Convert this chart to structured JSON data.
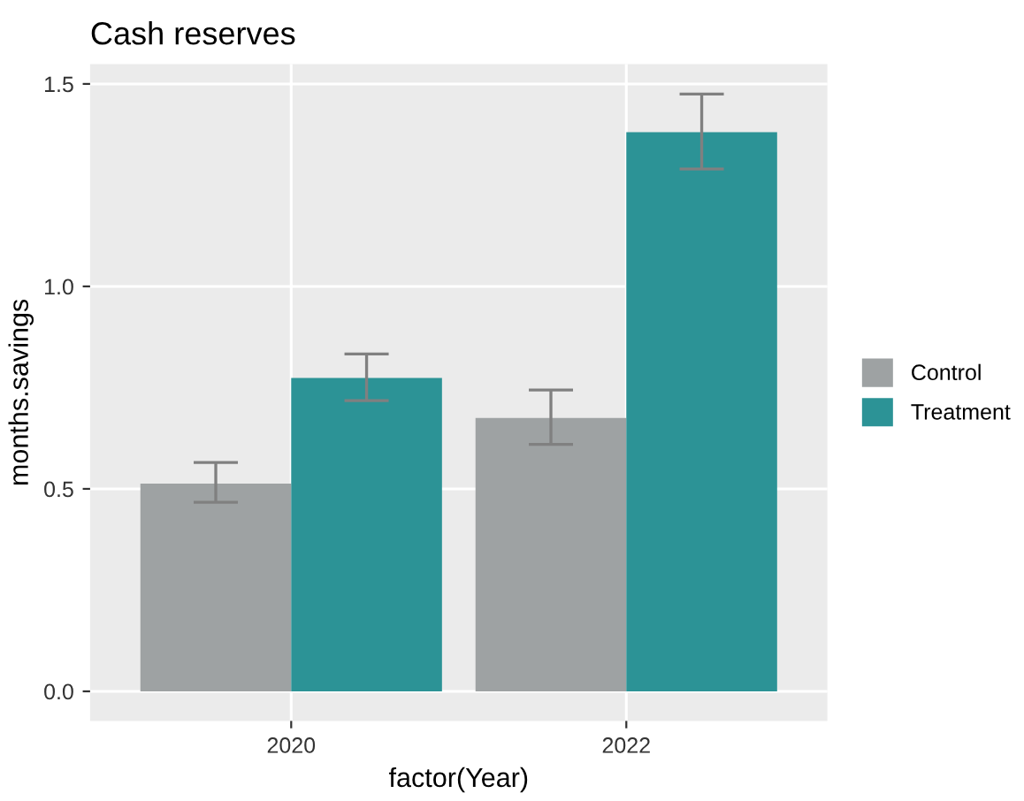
{
  "chart_data": {
    "type": "bar",
    "title": "Cash reserves",
    "xlabel": "factor(Year)",
    "ylabel": "months.savings",
    "categories": [
      "2020",
      "2022"
    ],
    "series": [
      {
        "name": "Control",
        "color": "#9ea2a3",
        "values": [
          0.513,
          0.675
        ],
        "errors": [
          [
            0.467,
            0.565
          ],
          [
            0.61,
            0.744
          ]
        ]
      },
      {
        "name": "Treatment",
        "color": "#2c9396",
        "values": [
          0.774,
          1.381
        ],
        "errors": [
          [
            0.718,
            0.833
          ],
          [
            1.29,
            1.475
          ]
        ]
      }
    ],
    "ylim": [
      -0.073,
      1.549
    ],
    "yticks": [
      {
        "value": 0,
        "label": "0.0"
      },
      0.5,
      {
        "value": 1,
        "label": "1.0"
      },
      1.5
    ],
    "grid": true,
    "legend": "right"
  }
}
